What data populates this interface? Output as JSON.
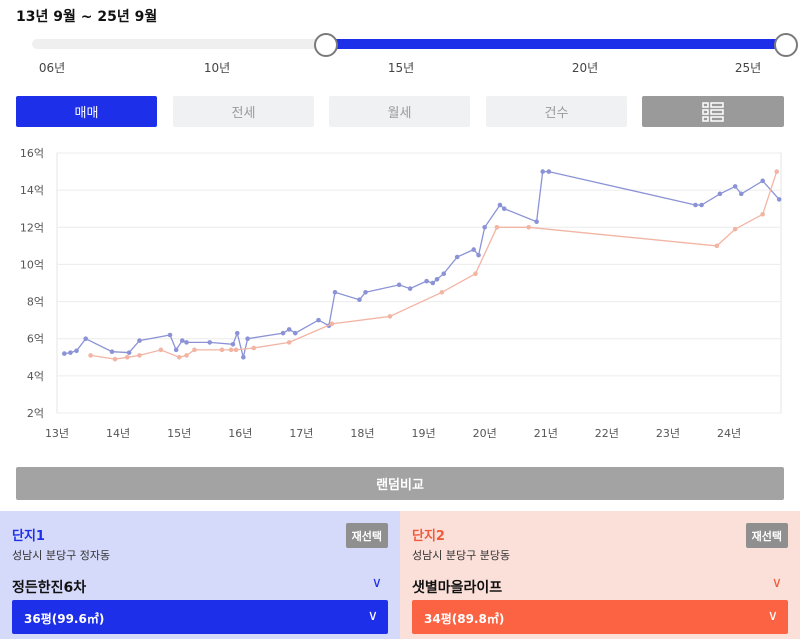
{
  "range_title": "13년 9월 ~ 25년 9월",
  "slider": {
    "labels": [
      "06년",
      "10년",
      "15년",
      "20년",
      "25년"
    ],
    "min_year": 2006,
    "max_year": 2025,
    "selected_start": "2013-09",
    "selected_end": "2025-09"
  },
  "tabs": {
    "sale": "매매",
    "jeonse": "전세",
    "monthly": "월세",
    "count": "건수",
    "list_icon": "list-icon"
  },
  "chart_data": {
    "type": "line",
    "x_unit": "year",
    "xlim": [
      2013,
      2024.85
    ],
    "ylim": [
      2,
      16
    ],
    "x_ticks": [
      2013,
      2014,
      2015,
      2016,
      2017,
      2018,
      2019,
      2020,
      2021,
      2022,
      2023,
      2024
    ],
    "x_tick_labels": [
      "13년",
      "14년",
      "15년",
      "16년",
      "17년",
      "18년",
      "19년",
      "20년",
      "21년",
      "22년",
      "23년",
      "24년"
    ],
    "y_ticks": [
      2,
      4,
      6,
      8,
      10,
      12,
      14,
      16
    ],
    "y_tick_labels": [
      "2억",
      "4억",
      "6억",
      "8억",
      "10억",
      "12억",
      "14억",
      "16억"
    ],
    "grid": true,
    "series": [
      {
        "color": "#8b93d6",
        "points": [
          [
            2013.12,
            5.2
          ],
          [
            2013.22,
            5.25
          ],
          [
            2013.32,
            5.35
          ],
          [
            2013.47,
            6.0
          ],
          [
            2013.9,
            5.3
          ],
          [
            2014.18,
            5.25
          ],
          [
            2014.35,
            5.9
          ],
          [
            2014.85,
            6.2
          ],
          [
            2014.95,
            5.4
          ],
          [
            2015.05,
            5.9
          ],
          [
            2015.12,
            5.8
          ],
          [
            2015.5,
            5.8
          ],
          [
            2015.88,
            5.7
          ],
          [
            2015.95,
            6.3
          ],
          [
            2016.05,
            5.0
          ],
          [
            2016.12,
            6.0
          ],
          [
            2016.7,
            6.3
          ],
          [
            2016.8,
            6.5
          ],
          [
            2016.9,
            6.3
          ],
          [
            2017.28,
            7.0
          ],
          [
            2017.45,
            6.7
          ],
          [
            2017.55,
            8.5
          ],
          [
            2017.95,
            8.1
          ],
          [
            2018.05,
            8.5
          ],
          [
            2018.6,
            8.9
          ],
          [
            2018.78,
            8.7
          ],
          [
            2019.05,
            9.1
          ],
          [
            2019.15,
            9.0
          ],
          [
            2019.22,
            9.2
          ],
          [
            2019.33,
            9.5
          ],
          [
            2019.55,
            10.4
          ],
          [
            2019.82,
            10.8
          ],
          [
            2019.9,
            10.5
          ],
          [
            2020.0,
            12.0
          ],
          [
            2020.25,
            13.2
          ],
          [
            2020.32,
            13.0
          ],
          [
            2020.85,
            12.3
          ],
          [
            2020.95,
            15.0
          ],
          [
            2021.05,
            15.0
          ],
          [
            2023.45,
            13.2
          ],
          [
            2023.55,
            13.2
          ],
          [
            2023.85,
            13.8
          ],
          [
            2024.1,
            14.2
          ],
          [
            2024.2,
            13.8
          ],
          [
            2024.55,
            14.5
          ],
          [
            2024.82,
            13.5
          ]
        ]
      },
      {
        "color": "#f2b4a3",
        "points": [
          [
            2013.55,
            5.1
          ],
          [
            2013.95,
            4.9
          ],
          [
            2014.15,
            5.0
          ],
          [
            2014.35,
            5.1
          ],
          [
            2014.7,
            5.4
          ],
          [
            2015.0,
            5.0
          ],
          [
            2015.12,
            5.1
          ],
          [
            2015.25,
            5.4
          ],
          [
            2015.7,
            5.4
          ],
          [
            2015.85,
            5.4
          ],
          [
            2015.93,
            5.4
          ],
          [
            2016.22,
            5.5
          ],
          [
            2016.8,
            5.8
          ],
          [
            2017.5,
            6.8
          ],
          [
            2018.45,
            7.2
          ],
          [
            2019.3,
            8.5
          ],
          [
            2019.85,
            9.5
          ],
          [
            2020.2,
            12.0
          ],
          [
            2020.72,
            12.0
          ],
          [
            2023.8,
            11.0
          ],
          [
            2024.1,
            11.9
          ],
          [
            2024.55,
            12.7
          ],
          [
            2024.78,
            15.0
          ]
        ]
      }
    ]
  },
  "compare_button": "랜덤비교",
  "complex1": {
    "title": "단지1",
    "reselect": "재선택",
    "address": "성남시 분당구 정자동",
    "name": "정든한진6차",
    "size": "36평(99.6㎡)"
  },
  "complex2": {
    "title": "단지2",
    "reselect": "재선택",
    "address": "성남시 분당구 분당동",
    "name": "샛별마을라이프",
    "size": "34평(89.8㎡)"
  }
}
